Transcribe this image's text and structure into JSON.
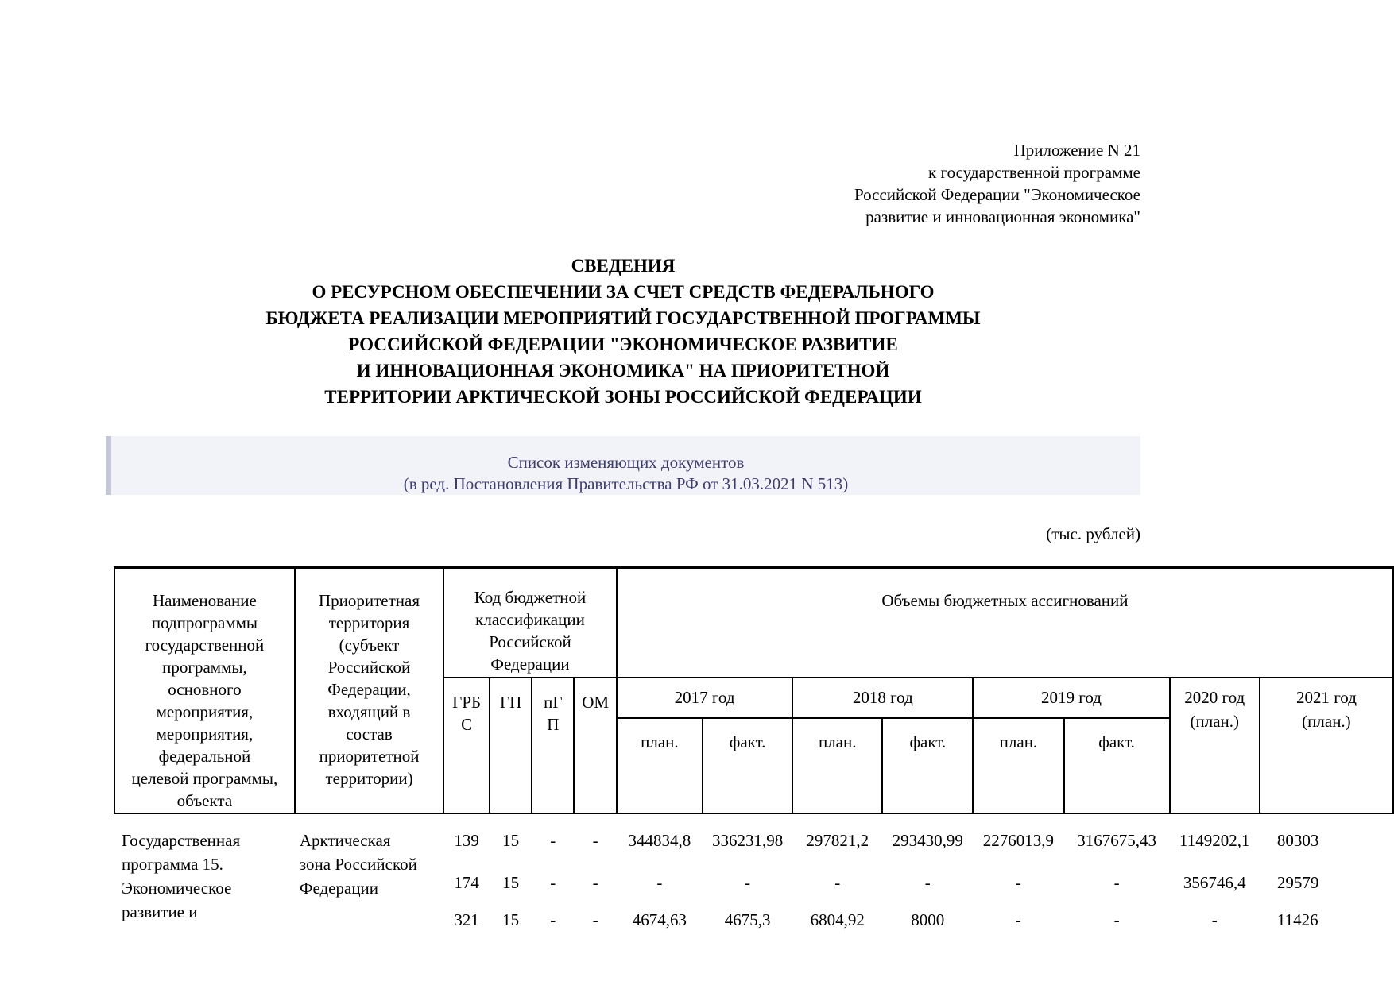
{
  "colors": {
    "amend_box_bg": "#f2f3f9",
    "amend_box_accent": "#c4c7d8",
    "amend_box_text": "#3c3c6b",
    "text": "#000000"
  },
  "appendix_note": {
    "lines": [
      "Приложение N 21",
      "к государственной программе",
      "Российской Федерации \"Экономическое",
      "развитие и инновационная экономика\""
    ]
  },
  "title": {
    "lines": [
      "СВЕДЕНИЯ",
      "О РЕСУРСНОМ ОБЕСПЕЧЕНИИ ЗА СЧЕТ СРЕДСТВ ФЕДЕРАЛЬНОГО",
      "БЮДЖЕТА РЕАЛИЗАЦИИ МЕРОПРИЯТИЙ ГОСУДАРСТВЕННОЙ ПРОГРАММЫ",
      "РОССИЙСКОЙ ФЕДЕРАЦИИ \"ЭКОНОМИЧЕСКОЕ РАЗВИТИЕ",
      "И ИННОВАЦИОННАЯ ЭКОНОМИКА\" НА ПРИОРИТЕТНОЙ",
      "ТЕРРИТОРИИ АРКТИЧЕСКОЙ ЗОНЫ РОССИЙСКОЙ ФЕДЕРАЦИИ"
    ]
  },
  "amendments_box": {
    "lines": [
      "Список изменяющих документов",
      "(в ред. Постановления Правительства РФ от 31.03.2021 N 513)"
    ]
  },
  "units_note": "(тыс. рублей)",
  "table": {
    "headers": {
      "name_lines": [
        "Наименование",
        "подпрограммы",
        "государственной",
        "программы,",
        "основного",
        "мероприятия,",
        "мероприятия,",
        "федеральной",
        "целевой программы,",
        "объекта"
      ],
      "territory_lines": [
        "Приоритетная",
        "территория",
        "(субъект",
        "Российской",
        "Федерации,",
        "входящий в",
        "состав",
        "приоритетной",
        "территории)"
      ],
      "budget_code_lines": [
        "Код бюджетной",
        "классификации",
        "Российской",
        "Федерации"
      ],
      "volumes_label": "Объемы бюджетных ассигнований",
      "grbs_lines": [
        "ГРБ",
        "С"
      ],
      "gp_lines": [
        "ГП"
      ],
      "pgp_lines": [
        "пГ",
        "П"
      ],
      "om_lines": [
        "ОМ"
      ],
      "year_2017": "2017 год",
      "year_2018": "2018 год",
      "year_2019": "2019 год",
      "year_2020_lines": [
        "2020 год",
        "(план.)"
      ],
      "year_2021_lines": [
        "2021 год",
        "(план.)"
      ],
      "plan_label": "план.",
      "fact_label": "факт."
    },
    "body": {
      "program_lines": [
        "Государственная",
        "программа 15.",
        "Экономическое",
        "развитие и"
      ],
      "territory_lines": [
        "Арктическая",
        "зона Российской",
        "Федерации"
      ],
      "columns": {
        "grbs": [
          "139",
          "174",
          "321"
        ],
        "gp": [
          "15",
          "15",
          "15"
        ],
        "pgp": [
          "-",
          "-",
          "-"
        ],
        "om": [
          "-",
          "-",
          "-"
        ],
        "y2017_plan": [
          "344834,8",
          "-",
          "4674,63"
        ],
        "y2017_fact": [
          "336231,98",
          "-",
          "4675,3"
        ],
        "y2018_plan": [
          "297821,2",
          "-",
          "6804,92"
        ],
        "y2018_fact": [
          "293430,99",
          "-",
          "8000"
        ],
        "y2019_plan": [
          "2276013,9",
          "-",
          "-"
        ],
        "y2019_fact": [
          "3167675,43",
          "-",
          "-"
        ],
        "y2020": [
          "1149202,1",
          "356746,4",
          "-"
        ],
        "y2021": [
          "80303",
          "29579",
          "11426"
        ]
      }
    }
  }
}
